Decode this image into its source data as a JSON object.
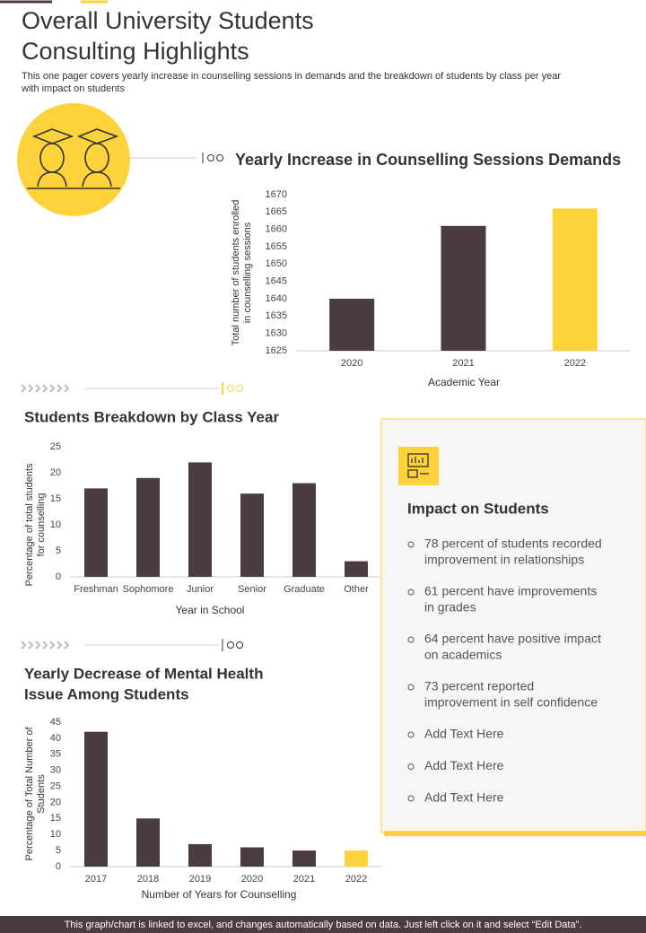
{
  "header": {
    "title": [
      "Overall University Students",
      "Consulting Highlights"
    ],
    "subtitle": [
      "This one pager covers yearly increase in counselling sessions in demands and the breakdown of students by class per year",
      "with impact on students"
    ]
  },
  "chart_data": [
    {
      "type": "bar",
      "title": [
        "Yearly Increase in Counselling Sessions Demands"
      ],
      "categories": [
        "2020",
        "2021",
        "2022"
      ],
      "values": [
        1640,
        1661,
        1666
      ],
      "colors": [
        "#4a3c3f",
        "#4a3c3f",
        "#fdd23a"
      ],
      "ylim": [
        1625,
        1670
      ],
      "yticks": [
        1625,
        1630,
        1635,
        1640,
        1645,
        1650,
        1655,
        1660,
        1665,
        1670
      ],
      "xlabel": "Academic Year",
      "ylabel": [
        "Total number of students enrolled",
        "in counselling sessions"
      ]
    },
    {
      "type": "bar",
      "title": [
        "Students Breakdown by Class Year"
      ],
      "categories": [
        "Freshman",
        "Sophomore",
        "Junior",
        "Senior",
        "Graduate",
        "Other"
      ],
      "values": [
        17,
        19,
        22,
        16,
        18,
        3
      ],
      "colors": [
        "#4a3c3f",
        "#4a3c3f",
        "#4a3c3f",
        "#4a3c3f",
        "#4a3c3f",
        "#4a3c3f"
      ],
      "ylim": [
        0,
        25
      ],
      "yticks": [
        0,
        5,
        10,
        15,
        20,
        25
      ],
      "xlabel": "Year in School",
      "ylabel": [
        "Percentage of total students",
        "for counselling"
      ]
    },
    {
      "type": "bar",
      "title": [
        "Yearly Decrease of Mental Health",
        "Issue Among Students"
      ],
      "categories": [
        "2017",
        "2018",
        "2019",
        "2020",
        "2021",
        "2022"
      ],
      "values": [
        42,
        15,
        7,
        6,
        5,
        5
      ],
      "colors": [
        "#4a3c3f",
        "#4a3c3f",
        "#4a3c3f",
        "#4a3c3f",
        "#4a3c3f",
        "#fdd23a"
      ],
      "ylim": [
        0,
        45
      ],
      "yticks": [
        0,
        5,
        10,
        15,
        20,
        25,
        30,
        35,
        40,
        45
      ],
      "xlabel": "Number of Years for Counselling",
      "ylabel": [
        "Percentage of Total Number of",
        "Students"
      ]
    }
  ],
  "impact": {
    "title": "Impact on Students",
    "items": [
      [
        "78 percent of students recorded",
        "improvement in relationships"
      ],
      [
        "61 percent have improvements",
        "in grades"
      ],
      [
        "64 percent have positive impact",
        "on academics"
      ],
      [
        "73 percent reported",
        "improvement in self confidence"
      ],
      [
        "Add Text Here"
      ],
      [
        "Add Text Here"
      ],
      [
        "Add Text Here"
      ]
    ]
  },
  "footer": "This graph/chart is linked to excel, and changes automatically based on data. Just left click on it and select “Edit Data”."
}
